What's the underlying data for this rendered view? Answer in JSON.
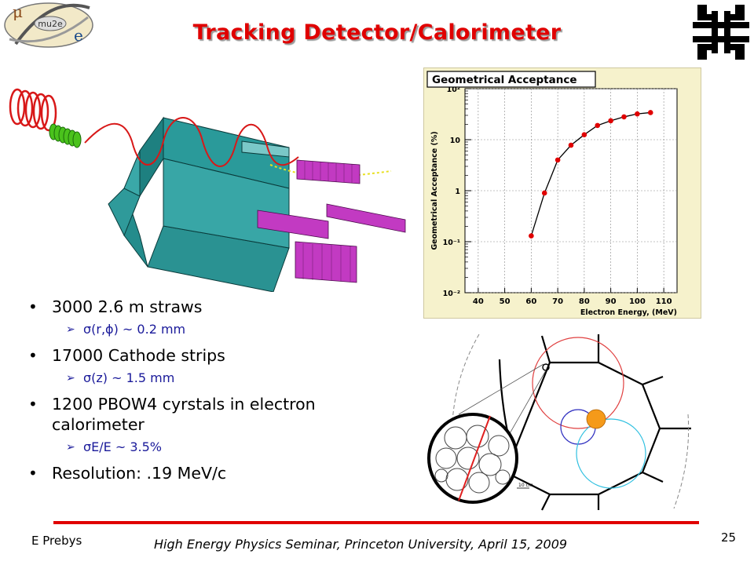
{
  "slide": {
    "title": "Tracking Detector/Calorimeter",
    "page_number": "25",
    "author": "E Prebys",
    "event": "High Energy Physics Seminar, Princeton University, April 15, 2009"
  },
  "logos": {
    "mu2e_text": "mu2e",
    "mu_symbol": "μ",
    "e_symbol": "e"
  },
  "bullets": [
    {
      "text": "3000 2.6 m straws",
      "sub": "σ(r,ϕ) ~ 0.2 mm"
    },
    {
      "text": "17000 Cathode strips",
      "sub": "σ(z) ~ 1.5 mm"
    },
    {
      "text": "1200 PBOW4 cyrstals in electron calorimeter",
      "sub": "σE/E ~ 3.5%"
    },
    {
      "text": "Resolution: .19 MeV/c",
      "sub": ""
    }
  ],
  "chart_data": {
    "type": "line",
    "title": "Geometrical Acceptance",
    "xlabel": "Electron Energy, (MeV)",
    "ylabel": "Geometrical Acceptance (%)",
    "xlim": [
      35,
      115
    ],
    "ylim": [
      0.01,
      100
    ],
    "log_y": true,
    "x_ticks": [
      "40",
      "50",
      "60",
      "70",
      "80",
      "90",
      "100",
      "110"
    ],
    "y_ticks": [
      "10⁻²",
      "10⁻¹",
      "1",
      "10",
      "10²"
    ],
    "grid": true,
    "series": [
      {
        "x": [
          60,
          65,
          70,
          75,
          80,
          85,
          90,
          95,
          100,
          105
        ],
        "y": [
          0.13,
          0.9,
          4,
          7.8,
          12.5,
          19,
          23.5,
          28,
          32,
          34
        ]
      }
    ],
    "colors": {
      "line": "#000000",
      "marker": "#e00000",
      "frame_bg": "#f6f2cc"
    }
  },
  "calorimeter": {
    "scale_label": "10 cm"
  }
}
